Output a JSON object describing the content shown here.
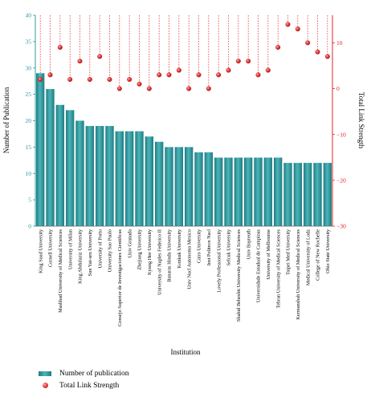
{
  "chart_data": {
    "type": "bar",
    "xlabel": "Institution",
    "ylabel": "Number of Publication",
    "y2label": "Total Link Strength",
    "ylim": [
      0,
      40
    ],
    "y2lim": [
      -30,
      16
    ],
    "yticks": [
      "0",
      "5",
      "10",
      "15",
      "20",
      "25",
      "30",
      "35",
      "40"
    ],
    "y2ticks": [
      "−30",
      "−20",
      "−10",
      "0",
      "10"
    ],
    "categories": [
      "King Saud University",
      "Cornell University",
      "Mashhad University of Medical Sciences",
      "University of Milan",
      "King Abdulaziz University",
      "Sun Yat-sen University",
      "University of Porto",
      "University Sao Paulo",
      "Consejo Superior de Investigaciones Cientificas",
      "Univ Granada",
      "Zhejiang University",
      "Kyung Hee University",
      "University of Naples Federico II",
      "Banaras Hindu University",
      "Konkuk University",
      "Univ Nacl Autonoma Mexico",
      "Cairo University",
      "Inst Politecn Nacl",
      "Lovely Professional University",
      "Selcuk University",
      "Shahid Beheshti University Medical Sciences",
      "Univ Bayreuth",
      "Universidade Estadual de Campinas",
      "University of Melbourne",
      "Tehran University of Medical Sciences",
      "Taipei Med University",
      "Kermanshah University of Medical Sciences",
      "Medical University of Lodz",
      "College of New Rochelle",
      "Ohio State University"
    ],
    "series": [
      {
        "name": "Number of publication",
        "type": "bar",
        "axis": "left",
        "color": "#2f9ba0",
        "values": [
          29,
          26,
          23,
          22,
          20,
          19,
          19,
          19,
          18,
          18,
          18,
          17,
          16,
          15,
          15,
          15,
          14,
          14,
          13,
          13,
          13,
          13,
          13,
          13,
          13,
          12,
          12,
          12,
          12,
          12
        ]
      },
      {
        "name": "Total Link Strength",
        "type": "scatter",
        "axis": "right",
        "color": "#e0202a",
        "values": [
          2,
          3,
          9,
          2,
          6,
          2,
          7,
          2,
          0,
          2,
          1,
          0,
          3,
          3,
          4,
          0,
          3,
          0,
          3,
          4,
          6,
          6,
          3,
          4,
          9,
          14,
          13,
          10,
          8,
          7
        ]
      }
    ],
    "legend_position": "bottom-left",
    "grid": false
  }
}
